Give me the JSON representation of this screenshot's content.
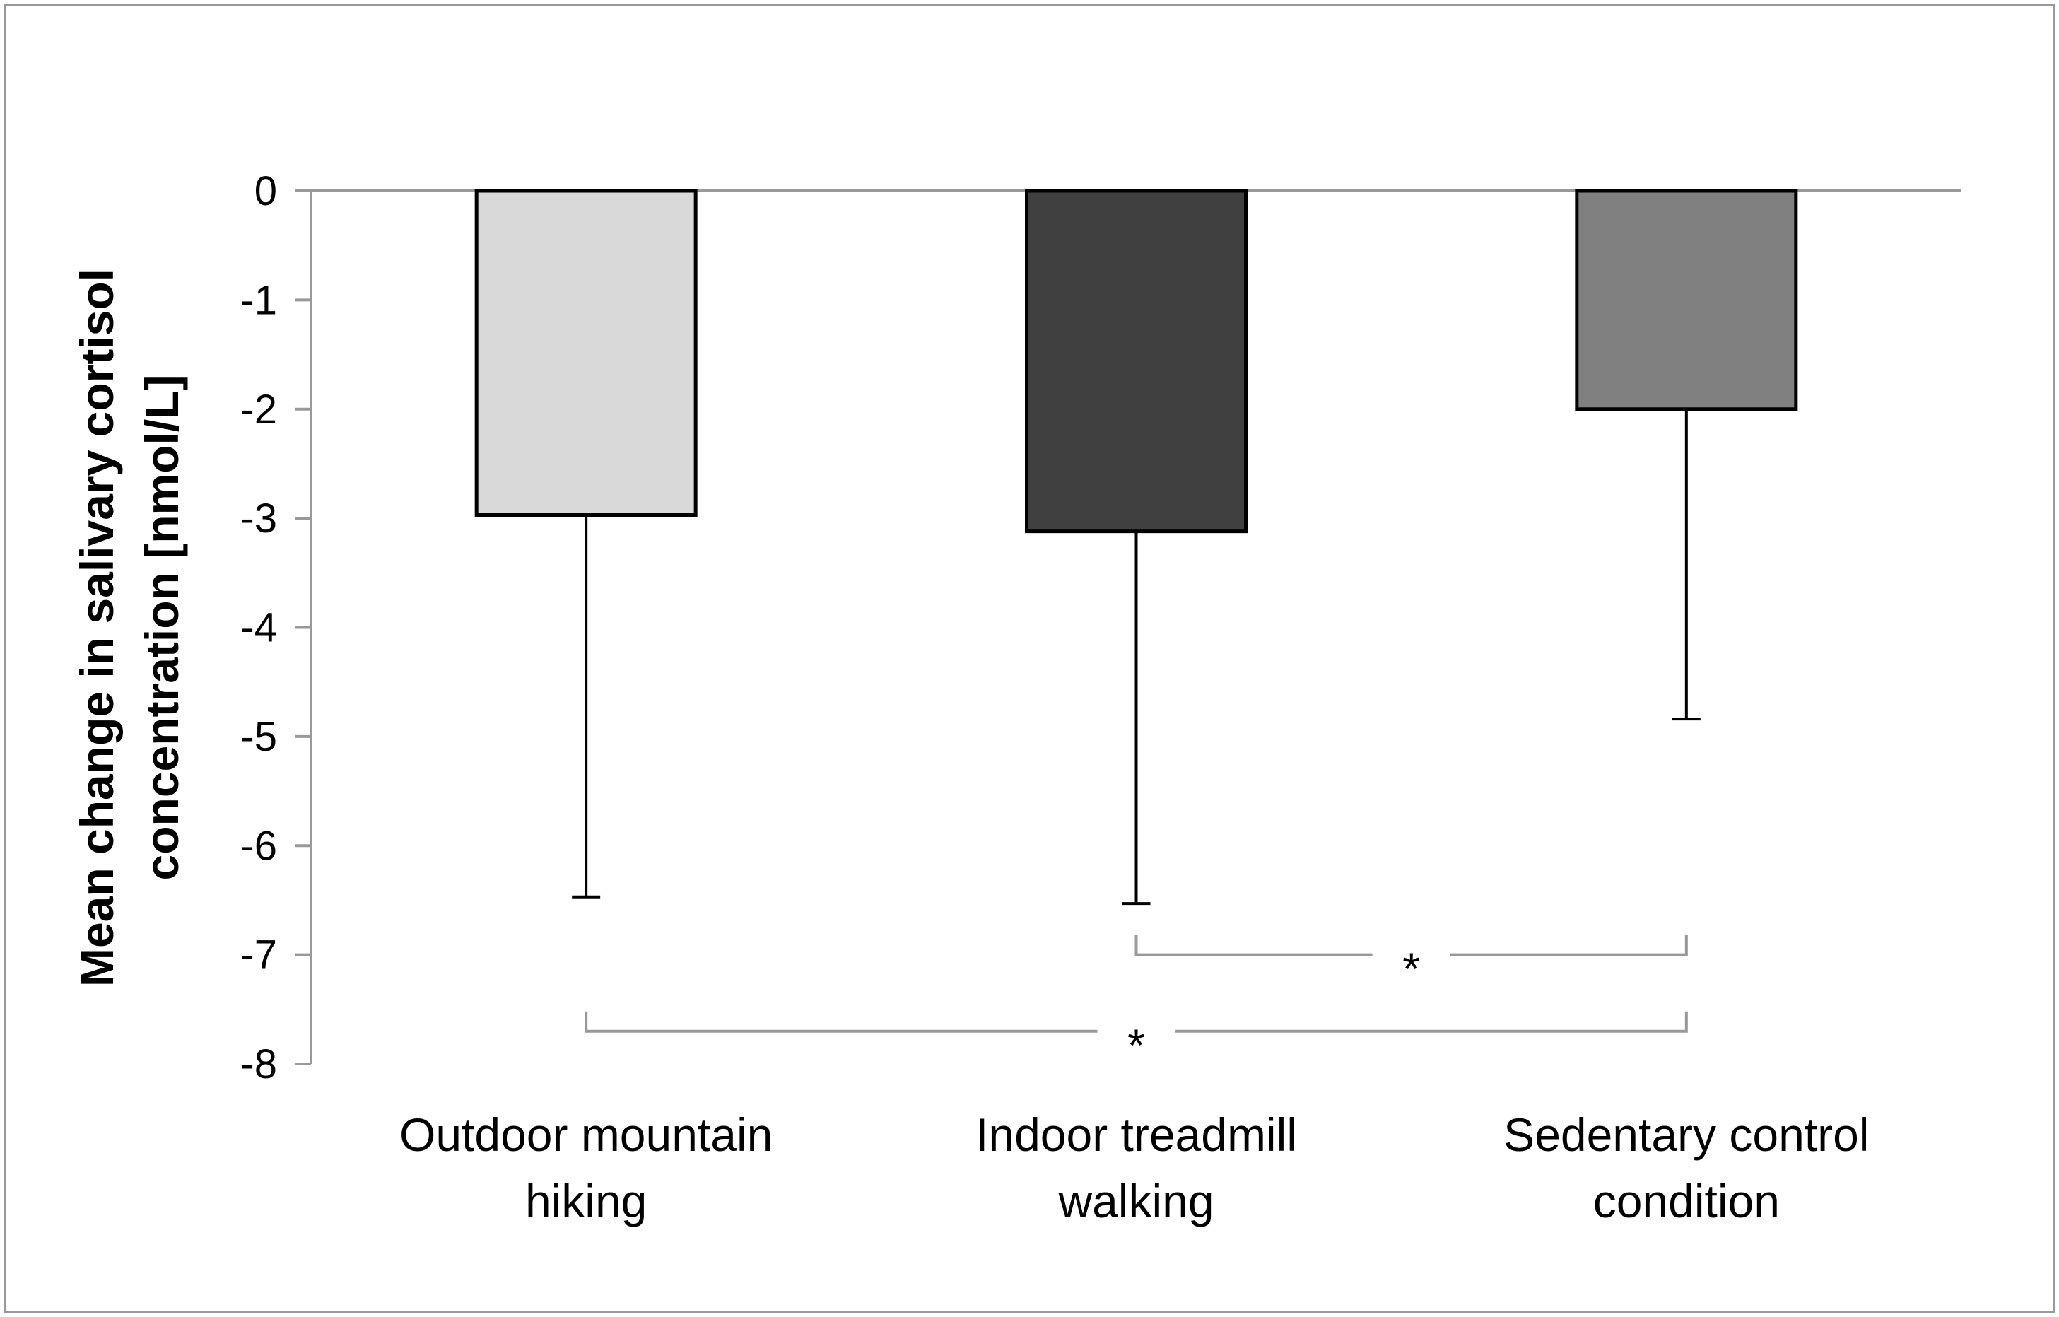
{
  "chart_data": {
    "type": "bar",
    "categories": [
      "Outdoor mountain hiking",
      "Indoor treadmill walking",
      "Sedentary control condition"
    ],
    "category_lines": [
      [
        "Outdoor mountain",
        "hiking"
      ],
      [
        "Indoor treadmill",
        "walking"
      ],
      [
        "Sedentary control",
        "condition"
      ]
    ],
    "values": [
      -2.97,
      -3.12,
      -2.0
    ],
    "error_lower": [
      -6.47,
      -6.53,
      -4.84
    ],
    "bar_colors": [
      "#d9d9d9",
      "#404040",
      "#808080"
    ],
    "bar_outline_color": "#000000",
    "ylim": [
      -8,
      0
    ],
    "yticks": [
      0,
      -1,
      -2,
      -3,
      -4,
      -5,
      -6,
      -7,
      -8
    ],
    "ytick_labels": [
      "0",
      "-1",
      "-2",
      "-3",
      "-4",
      "-5",
      "-6",
      "-7",
      "-8"
    ],
    "ylabel_lines": [
      "Mean change in salivary cortisol",
      "concentration [nmol/L]"
    ],
    "xlabel": "",
    "title": "",
    "grid": false,
    "legend": "none",
    "significance": [
      {
        "from": 1,
        "to": 2,
        "y": -7.0,
        "label": "*"
      },
      {
        "from": 0,
        "to": 2,
        "y": -7.7,
        "label": "*"
      }
    ],
    "axis_color": "#999999",
    "bracket_color": "#999999"
  }
}
